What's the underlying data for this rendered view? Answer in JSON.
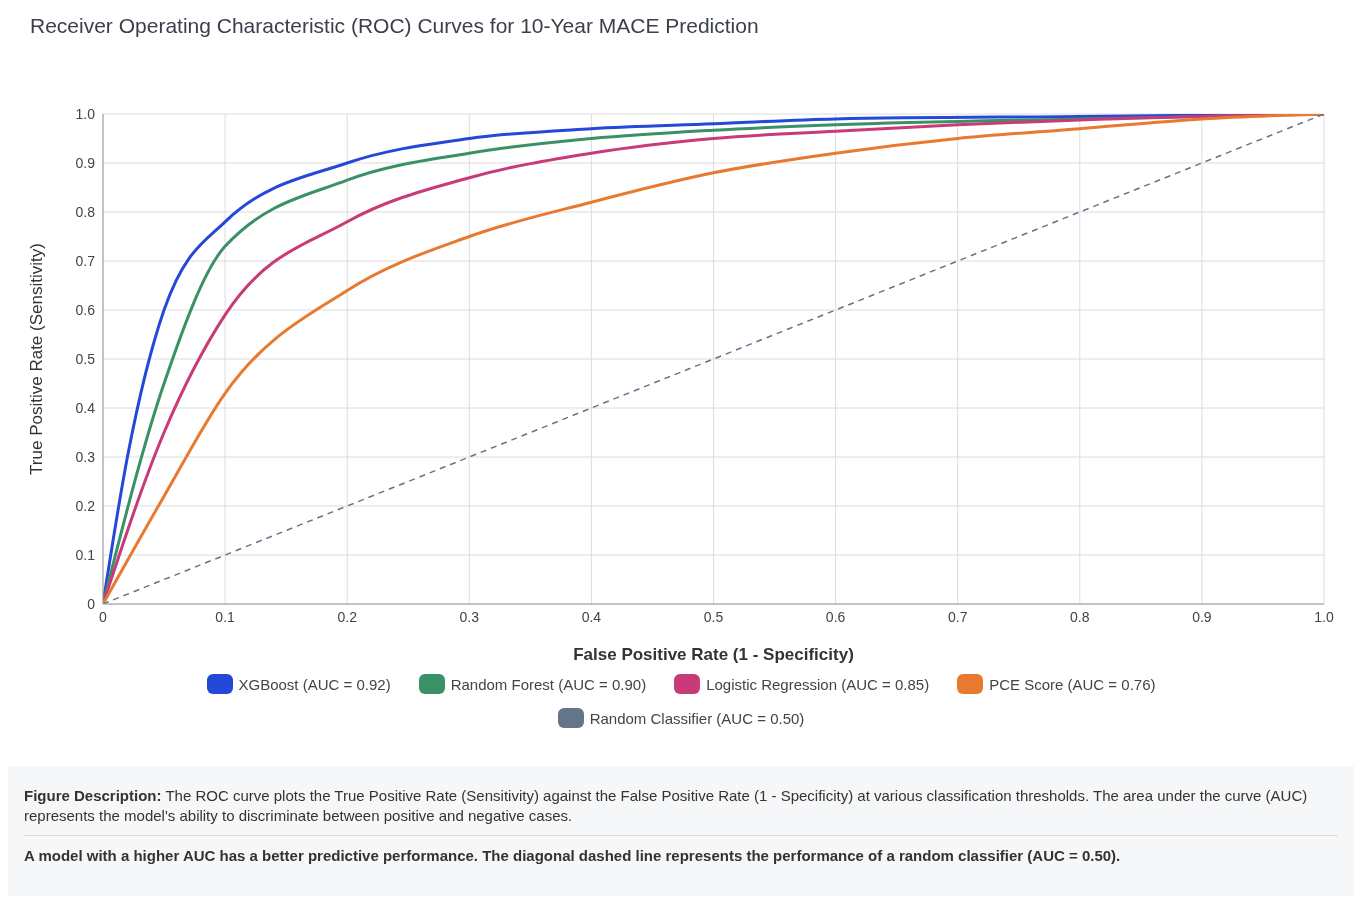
{
  "chart_data": {
    "type": "line",
    "title": "Receiver Operating Characteristic (ROC) Curves for 10-Year MACE Prediction",
    "xlabel": "False Positive Rate (1 - Specificity)",
    "ylabel": "True Positive Rate (Sensitivity)",
    "xlim": [
      0,
      1
    ],
    "ylim": [
      0,
      1
    ],
    "xticks": [
      0,
      0.1,
      0.2,
      0.3,
      0.4,
      0.5,
      0.6,
      0.7,
      0.8,
      0.9,
      {
        "value": 1,
        "label": "1.0"
      }
    ],
    "yticks": [
      0,
      0.1,
      0.2,
      0.3,
      0.4,
      0.5,
      0.6,
      0.7,
      0.8,
      0.9,
      {
        "value": 1,
        "label": "1.0"
      }
    ],
    "grid": true,
    "legend": "bottom",
    "series": [
      {
        "name": "XGBoost (AUC = 0.92)",
        "color": "#2448d8",
        "x": [
          0,
          0.02,
          0.05,
          0.1,
          0.2,
          0.3,
          0.4,
          0.5,
          0.6,
          0.8,
          1
        ],
        "values": [
          0,
          0.3,
          0.6,
          0.78,
          0.9,
          0.95,
          0.97,
          0.98,
          0.99,
          0.995,
          1
        ]
      },
      {
        "name": "Random Forest (AUC = 0.90)",
        "color": "#3a9165",
        "x": [
          0,
          0.05,
          0.1,
          0.2,
          0.3,
          0.4,
          0.5,
          0.6,
          0.8,
          1
        ],
        "values": [
          0,
          0.45,
          0.73,
          0.865,
          0.92,
          0.95,
          0.967,
          0.978,
          0.99,
          1
        ]
      },
      {
        "name": "Logistic Regression (AUC = 0.85)",
        "color": "#c93a78",
        "x": [
          0,
          0.05,
          0.1,
          0.2,
          0.3,
          0.4,
          0.5,
          0.6,
          0.7,
          0.8,
          1
        ],
        "values": [
          0,
          0.35,
          0.59,
          0.78,
          0.87,
          0.92,
          0.95,
          0.965,
          0.978,
          0.988,
          1
        ]
      },
      {
        "name": "PCE Score (AUC = 0.76)",
        "color": "#e87a30",
        "x": [
          0,
          0.05,
          0.1,
          0.2,
          0.3,
          0.4,
          0.5,
          0.6,
          0.7,
          0.8,
          0.9,
          1
        ],
        "values": [
          0,
          0.22,
          0.43,
          0.64,
          0.75,
          0.82,
          0.88,
          0.92,
          0.95,
          0.97,
          0.99,
          1
        ]
      },
      {
        "name": "Random Classifier (AUC = 0.50)",
        "color": "#64748b",
        "line_style": "dashed",
        "x": [
          0,
          1
        ],
        "values": [
          0,
          1
        ]
      }
    ],
    "annotations": [
      "Figure Description: The ROC curve plots the True Positive Rate (Sensitivity) against the False Positive Rate (1 - Specificity) at various classification thresholds. The area under the curve (AUC) represents the model's ability to discriminate between positive and negative cases.",
      "A model with a higher AUC has a better predictive performance. The diagonal dashed line represents the performance of a random classifier (AUC = 0.50)."
    ]
  }
}
